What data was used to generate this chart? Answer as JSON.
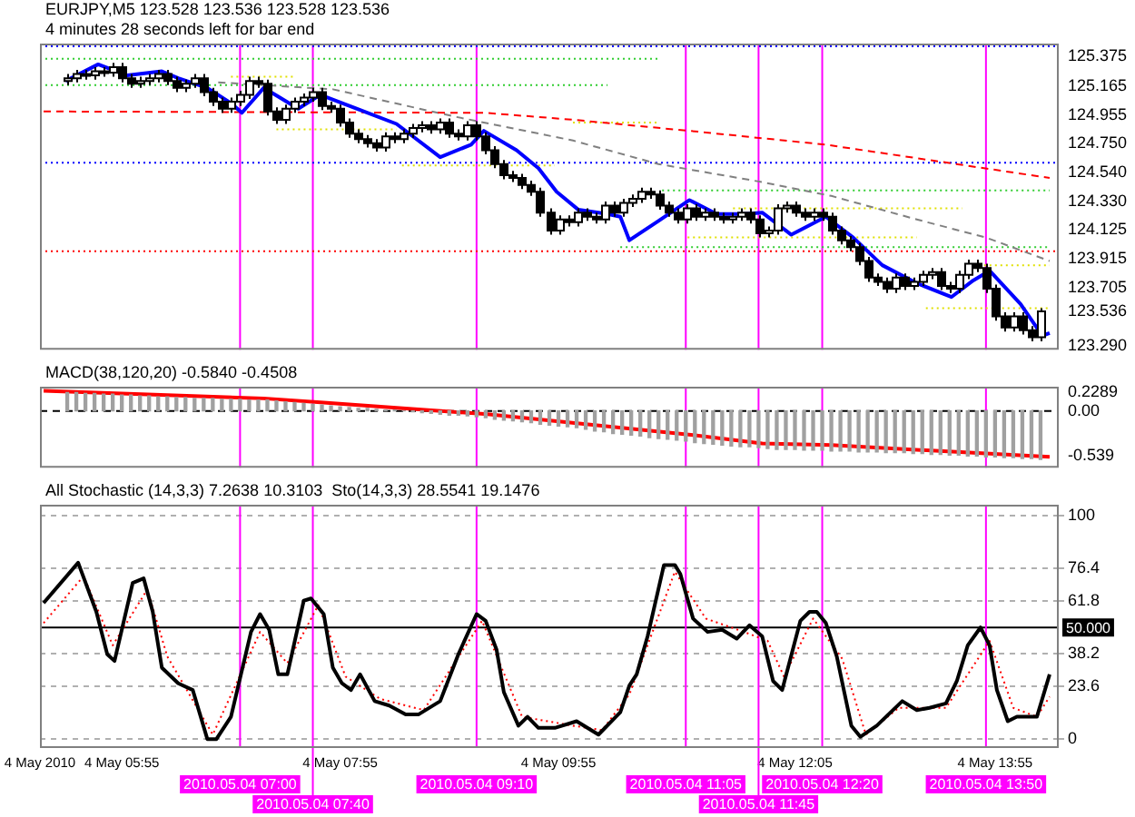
{
  "chart_data": [
    {
      "type": "candlestick",
      "title": "EURJPY,M5 123.528 123.536 123.528 123.536",
      "annotations": [
        "4 minutes 28 seconds left for bar end"
      ],
      "x": [
        "2010-05-04T05:25",
        "2010-05-04T05:30",
        "2010-05-04T05:35",
        "2010-05-04T05:40",
        "2010-05-04T05:45",
        "2010-05-04T05:50",
        "2010-05-04T05:55",
        "2010-05-04T06:00",
        "2010-05-04T06:05",
        "2010-05-04T06:10",
        "2010-05-04T06:15",
        "2010-05-04T06:20",
        "2010-05-04T06:25",
        "2010-05-04T06:30",
        "2010-05-04T06:35",
        "2010-05-04T06:40",
        "2010-05-04T06:45",
        "2010-05-04T06:50",
        "2010-05-04T06:55",
        "2010-05-04T07:00",
        "2010-05-04T07:05",
        "2010-05-04T07:10",
        "2010-05-04T07:15",
        "2010-05-04T07:20",
        "2010-05-04T07:25",
        "2010-05-04T07:30",
        "2010-05-04T07:35",
        "2010-05-04T07:40",
        "2010-05-04T07:45",
        "2010-05-04T07:50",
        "2010-05-04T07:55",
        "2010-05-04T08:00",
        "2010-05-04T08:05",
        "2010-05-04T08:10",
        "2010-05-04T08:15",
        "2010-05-04T08:20",
        "2010-05-04T08:25",
        "2010-05-04T08:30",
        "2010-05-04T08:35",
        "2010-05-04T08:40",
        "2010-05-04T08:45",
        "2010-05-04T08:50",
        "2010-05-04T08:55",
        "2010-05-04T09:00",
        "2010-05-04T09:05",
        "2010-05-04T09:10",
        "2010-05-04T09:15",
        "2010-05-04T09:20",
        "2010-05-04T09:25",
        "2010-05-04T09:30",
        "2010-05-04T09:35",
        "2010-05-04T09:40",
        "2010-05-04T09:45",
        "2010-05-04T09:50",
        "2010-05-04T09:55",
        "2010-05-04T10:00",
        "2010-05-04T10:05",
        "2010-05-04T10:10",
        "2010-05-04T10:15",
        "2010-05-04T10:20",
        "2010-05-04T10:25",
        "2010-05-04T10:30",
        "2010-05-04T10:35",
        "2010-05-04T10:40",
        "2010-05-04T10:45",
        "2010-05-04T10:50",
        "2010-05-04T10:55",
        "2010-05-04T11:00",
        "2010-05-04T11:05",
        "2010-05-04T11:10",
        "2010-05-04T11:15",
        "2010-05-04T11:20",
        "2010-05-04T11:25",
        "2010-05-04T11:30",
        "2010-05-04T11:35",
        "2010-05-04T11:40",
        "2010-05-04T11:45",
        "2010-05-04T11:50",
        "2010-05-04T11:55",
        "2010-05-04T12:00",
        "2010-05-04T12:05",
        "2010-05-04T12:10",
        "2010-05-04T12:15",
        "2010-05-04T12:20",
        "2010-05-04T12:25",
        "2010-05-04T12:30",
        "2010-05-04T12:35",
        "2010-05-04T12:40",
        "2010-05-04T12:45",
        "2010-05-04T12:50",
        "2010-05-04T12:55",
        "2010-05-04T13:00",
        "2010-05-04T13:05",
        "2010-05-04T13:10",
        "2010-05-04T13:15",
        "2010-05-04T13:20",
        "2010-05-04T13:25",
        "2010-05-04T13:30",
        "2010-05-04T13:35",
        "2010-05-04T13:40",
        "2010-05-04T13:45",
        "2010-05-04T13:50",
        "2010-05-04T13:55",
        "2010-05-04T14:00",
        "2010-05-04T14:05",
        "2010-05-04T14:10",
        "2010-05-04T14:15",
        "2010-05-04T14:20"
      ],
      "ohlc": [
        [
          125.2,
          125.25,
          125.17,
          125.22
        ],
        [
          125.22,
          125.28,
          125.19,
          125.25
        ],
        [
          125.25,
          125.28,
          125.21,
          125.24
        ],
        [
          125.24,
          125.3,
          125.21,
          125.27
        ],
        [
          125.27,
          125.3,
          125.23,
          125.26
        ],
        [
          125.26,
          125.33,
          125.23,
          125.3
        ],
        [
          125.3,
          125.33,
          125.19,
          125.22
        ],
        [
          125.22,
          125.25,
          125.15,
          125.18
        ],
        [
          125.18,
          125.23,
          125.15,
          125.2
        ],
        [
          125.2,
          125.25,
          125.17,
          125.22
        ],
        [
          125.22,
          125.28,
          125.19,
          125.25
        ],
        [
          125.25,
          125.28,
          125.17,
          125.2
        ],
        [
          125.2,
          125.23,
          125.12,
          125.15
        ],
        [
          125.15,
          125.21,
          125.12,
          125.18
        ],
        [
          125.18,
          125.25,
          125.15,
          125.22
        ],
        [
          125.22,
          125.25,
          125.09,
          125.12
        ],
        [
          125.12,
          125.15,
          125.02,
          125.05
        ],
        [
          125.05,
          125.08,
          124.97,
          125.0
        ],
        [
          125.0,
          125.08,
          124.97,
          125.05
        ],
        [
          125.05,
          125.13,
          125.02,
          125.1
        ],
        [
          125.1,
          125.23,
          125.07,
          125.2
        ],
        [
          125.2,
          125.23,
          125.15,
          125.18
        ],
        [
          125.18,
          125.21,
          124.95,
          124.98
        ],
        [
          124.98,
          125.01,
          124.89,
          124.92
        ],
        [
          124.92,
          125.03,
          124.89,
          125.0
        ],
        [
          125.0,
          125.08,
          124.97,
          125.05
        ],
        [
          125.05,
          125.11,
          125.02,
          125.08
        ],
        [
          125.08,
          125.15,
          125.05,
          125.12
        ],
        [
          125.12,
          125.15,
          124.99,
          125.02
        ],
        [
          125.02,
          125.05,
          124.97,
          125.0
        ],
        [
          125.0,
          125.03,
          124.87,
          124.9
        ],
        [
          124.9,
          124.93,
          124.79,
          124.82
        ],
        [
          124.82,
          124.85,
          124.75,
          124.78
        ],
        [
          124.78,
          124.81,
          124.72,
          124.75
        ],
        [
          124.75,
          124.78,
          124.69,
          124.72
        ],
        [
          124.72,
          124.83,
          124.69,
          124.8
        ],
        [
          124.8,
          124.83,
          124.75,
          124.78
        ],
        [
          124.78,
          124.85,
          124.75,
          124.82
        ],
        [
          124.82,
          124.89,
          124.79,
          124.86
        ],
        [
          124.86,
          124.91,
          124.83,
          124.88
        ],
        [
          124.88,
          124.91,
          124.82,
          124.85
        ],
        [
          124.85,
          124.93,
          124.82,
          124.9
        ],
        [
          124.9,
          124.93,
          124.79,
          124.82
        ],
        [
          124.82,
          124.85,
          124.77,
          124.8
        ],
        [
          124.8,
          124.91,
          124.77,
          124.88
        ],
        [
          124.88,
          124.91,
          124.77,
          124.8
        ],
        [
          124.8,
          124.83,
          124.67,
          124.7
        ],
        [
          124.7,
          124.73,
          124.57,
          124.6
        ],
        [
          124.6,
          124.63,
          124.49,
          124.52
        ],
        [
          124.52,
          124.55,
          124.47,
          124.5
        ],
        [
          124.5,
          124.53,
          124.42,
          124.45
        ],
        [
          124.45,
          124.48,
          124.37,
          124.4
        ],
        [
          124.4,
          124.43,
          124.22,
          124.25
        ],
        [
          124.25,
          124.28,
          124.09,
          124.12
        ],
        [
          124.12,
          124.23,
          124.09,
          124.2
        ],
        [
          124.2,
          124.23,
          124.15,
          124.18
        ],
        [
          124.18,
          124.28,
          124.15,
          124.25
        ],
        [
          124.25,
          124.28,
          124.19,
          124.22
        ],
        [
          124.22,
          124.25,
          124.17,
          124.2
        ],
        [
          124.2,
          124.33,
          124.17,
          124.3
        ],
        [
          124.3,
          124.33,
          124.22,
          124.25
        ],
        [
          124.25,
          124.35,
          124.22,
          124.32
        ],
        [
          124.32,
          124.38,
          124.29,
          124.35
        ],
        [
          124.35,
          124.43,
          124.32,
          124.4
        ],
        [
          124.4,
          124.43,
          124.35,
          124.38
        ],
        [
          124.38,
          124.41,
          124.27,
          124.3
        ],
        [
          124.3,
          124.33,
          124.22,
          124.25
        ],
        [
          124.25,
          124.28,
          124.17,
          124.2
        ],
        [
          124.2,
          124.31,
          124.17,
          124.28
        ],
        [
          124.28,
          124.31,
          124.19,
          124.22
        ],
        [
          124.22,
          124.28,
          124.19,
          124.25
        ],
        [
          124.25,
          124.28,
          124.19,
          124.22
        ],
        [
          124.22,
          124.25,
          124.17,
          124.2
        ],
        [
          124.2,
          124.25,
          124.17,
          124.22
        ],
        [
          124.22,
          124.28,
          124.19,
          124.25
        ],
        [
          124.25,
          124.28,
          124.17,
          124.2
        ],
        [
          124.2,
          124.23,
          124.07,
          124.1
        ],
        [
          124.1,
          124.15,
          124.07,
          124.12
        ],
        [
          124.12,
          124.31,
          124.09,
          124.28
        ],
        [
          124.28,
          124.33,
          124.25,
          124.3
        ],
        [
          124.3,
          124.33,
          124.22,
          124.25
        ],
        [
          124.25,
          124.28,
          124.19,
          124.22
        ],
        [
          124.22,
          124.28,
          124.19,
          124.25
        ],
        [
          124.25,
          124.28,
          124.19,
          124.22
        ],
        [
          124.22,
          124.25,
          124.09,
          124.12
        ],
        [
          124.12,
          124.15,
          124.02,
          124.05
        ],
        [
          124.05,
          124.08,
          123.97,
          124.0
        ],
        [
          124.0,
          124.03,
          123.87,
          123.9
        ],
        [
          123.9,
          123.93,
          123.75,
          123.78
        ],
        [
          123.78,
          123.81,
          123.72,
          123.75
        ],
        [
          123.75,
          123.78,
          123.67,
          123.7
        ],
        [
          123.7,
          123.81,
          123.67,
          123.78
        ],
        [
          123.78,
          123.81,
          123.69,
          123.72
        ],
        [
          123.72,
          123.78,
          123.69,
          123.75
        ],
        [
          123.75,
          123.83,
          123.72,
          123.8
        ],
        [
          123.8,
          123.85,
          123.77,
          123.82
        ],
        [
          123.82,
          123.85,
          123.69,
          123.72
        ],
        [
          123.72,
          123.75,
          123.67,
          123.7
        ],
        [
          123.7,
          123.83,
          123.67,
          123.8
        ],
        [
          123.8,
          123.91,
          123.77,
          123.88
        ],
        [
          123.88,
          123.91,
          123.82,
          123.85
        ],
        [
          123.85,
          123.88,
          123.67,
          123.7
        ],
        [
          123.7,
          123.73,
          123.47,
          123.5
        ],
        [
          123.5,
          123.53,
          123.39,
          123.42
        ],
        [
          123.42,
          123.53,
          123.39,
          123.5
        ],
        [
          123.5,
          123.53,
          123.37,
          123.4
        ],
        [
          123.4,
          123.43,
          123.32,
          123.35
        ],
        [
          123.35,
          123.56,
          123.32,
          123.536
        ]
      ],
      "series": [
        {
          "type": "line",
          "color": "#0000ff",
          "x": [
            "2010-05-04T05:24",
            "2010-05-04T05:42",
            "2010-05-04T05:58",
            "2010-05-04T06:17",
            "2010-05-04T06:26",
            "2010-05-04T06:42",
            "2010-05-04T06:55",
            "2010-05-04T07:01",
            "2010-05-04T07:13",
            "2010-05-04T07:32",
            "2010-05-04T07:44",
            "2010-05-04T08:04",
            "2010-05-04T08:26",
            "2010-05-04T08:50",
            "2010-05-04T09:07",
            "2010-05-04T09:14",
            "2010-05-04T09:32",
            "2010-05-04T09:44",
            "2010-05-04T09:54",
            "2010-05-04T10:06",
            "2010-05-04T10:22",
            "2010-05-04T10:29",
            "2010-05-04T10:34",
            "2010-05-04T10:50",
            "2010-05-04T11:07",
            "2010-05-04T11:22",
            "2010-05-04T11:37",
            "2010-05-04T11:47",
            "2010-05-04T12:03",
            "2010-05-04T12:22",
            "2010-05-04T12:37",
            "2010-05-04T12:53",
            "2010-05-04T13:12",
            "2010-05-04T13:31",
            "2010-05-04T13:43",
            "2010-05-04T13:52",
            "2010-05-04T14:09",
            "2010-05-04T14:21",
            "2010-05-04T14:25"
          ],
          "values": [
            125.2,
            125.32,
            125.24,
            125.27,
            125.22,
            125.15,
            125.04,
            124.97,
            125.15,
            125.0,
            125.1,
            125.0,
            124.89,
            124.65,
            124.74,
            124.84,
            124.7,
            124.57,
            124.4,
            124.27,
            124.24,
            124.22,
            124.05,
            124.19,
            124.34,
            124.24,
            124.24,
            124.25,
            124.09,
            124.22,
            124.07,
            123.87,
            123.74,
            123.64,
            123.76,
            123.83,
            123.59,
            123.36,
            123.38
          ]
        },
        {
          "type": "line",
          "color": "#ff0000",
          "line_style": "dashed",
          "x": [
            "2010-05-04T05:12",
            "2010-05-04T09:15",
            "2010-05-04T10:03",
            "2010-05-04T11:07",
            "2010-05-04T12:22",
            "2010-05-04T14:25"
          ],
          "values": [
            124.98,
            124.97,
            124.92,
            124.84,
            124.74,
            124.5
          ]
        },
        {
          "type": "line",
          "color": "#808080",
          "line_style": "dashed",
          "x": [
            "2010-05-04T06:48",
            "2010-05-04T07:51",
            "2010-05-04T08:59",
            "2010-05-04T10:03",
            "2010-05-04T10:50",
            "2010-05-04T11:47",
            "2010-05-04T12:25",
            "2010-05-04T13:12",
            "2010-05-04T13:50",
            "2010-05-04T14:25"
          ],
          "values": [
            125.19,
            125.14,
            124.94,
            124.77,
            124.6,
            124.47,
            124.37,
            124.2,
            124.07,
            123.9
          ]
        },
        {
          "type": "line",
          "color": "#0000ff",
          "line_style": "dotted",
          "x": [
            "2010-05-04T05:10",
            "2010-05-04T14:30"
          ],
          "values": [
            125.45,
            125.45
          ]
        },
        {
          "type": "line",
          "color": "#32cd32",
          "line_style": "dotted",
          "x": [
            "2010-05-04T05:10",
            "2010-05-04T10:50"
          ],
          "values": [
            125.36,
            125.36
          ]
        },
        {
          "type": "line",
          "color": "#32cd32",
          "line_style": "dotted",
          "x": [
            "2010-05-04T05:10",
            "2010-05-04T10:22"
          ],
          "values": [
            125.17,
            125.17
          ]
        },
        {
          "type": "line",
          "color": "#0000ff",
          "line_style": "dotted",
          "x": [
            "2010-05-04T05:10",
            "2010-05-04T14:30"
          ],
          "values": [
            124.61,
            124.61
          ]
        },
        {
          "type": "line",
          "color": "#32cd32",
          "line_style": "dotted",
          "x": [
            "2010-05-04T10:52",
            "2010-05-04T14:25"
          ],
          "values": [
            124.41,
            124.41
          ]
        },
        {
          "type": "line",
          "color": "#e0e000",
          "line_style": "dotted",
          "x": [
            "2010-05-04T11:31",
            "2010-05-04T13:37"
          ],
          "values": [
            124.28,
            124.28
          ]
        },
        {
          "type": "line",
          "color": "#e0e000",
          "line_style": "dotted",
          "x": [
            "2010-05-04T11:06",
            "2010-05-04T13:12"
          ],
          "values": [
            124.07,
            124.07
          ]
        },
        {
          "type": "line",
          "color": "#32cd32",
          "line_style": "dotted",
          "x": [
            "2010-05-04T10:29",
            "2010-05-04T14:25"
          ],
          "values": [
            124.0,
            124.0
          ]
        },
        {
          "type": "line",
          "color": "#ff0000",
          "line_style": "dotted",
          "x": [
            "2010-05-04T05:10",
            "2010-05-04T14:30"
          ],
          "values": [
            123.97,
            123.97
          ]
        },
        {
          "type": "line",
          "color": "#e0e000",
          "line_style": "dotted",
          "x": [
            "2010-05-04T13:40",
            "2010-05-04T14:25"
          ],
          "values": [
            123.87,
            123.87
          ]
        },
        {
          "type": "line",
          "color": "#e0e000",
          "line_style": "dotted",
          "x": [
            "2010-05-04T13:17",
            "2010-05-04T14:25"
          ],
          "values": [
            123.56,
            123.56
          ]
        },
        {
          "type": "line",
          "color": "#e0e000",
          "line_style": "dotted",
          "x": [
            "2010-05-04T08:29",
            "2010-05-04T09:53"
          ],
          "values": [
            124.59,
            124.59
          ]
        },
        {
          "type": "line",
          "color": "#e0e000",
          "line_style": "dotted",
          "x": [
            "2010-05-04T07:20",
            "2010-05-04T08:26"
          ],
          "values": [
            124.85,
            124.85
          ]
        },
        {
          "type": "line",
          "color": "#e0e000",
          "line_style": "dotted",
          "x": [
            "2010-05-04T06:55",
            "2010-05-04T07:29"
          ],
          "values": [
            125.23,
            125.23
          ]
        },
        {
          "type": "line",
          "color": "#e0e000",
          "line_style": "dotted",
          "x": [
            "2010-05-04T10:03",
            "2010-05-04T10:49"
          ],
          "values": [
            124.9,
            124.9
          ]
        }
      ],
      "xlim": [
        "2010-05-04T05:10",
        "2010-05-04T14:30"
      ],
      "ylim": [
        123.26,
        125.47
      ],
      "yticks": [
        125.375,
        125.165,
        124.955,
        {
          "value": 124.75,
          "label": "124.750"
        },
        {
          "value": 124.54,
          "label": "124.540"
        },
        {
          "value": 124.33,
          "label": "124.330"
        },
        124.125,
        123.915,
        123.705,
        123.536,
        {
          "value": 123.29,
          "label": "123.290"
        }
      ],
      "tick_labels": "y",
      "ref_lines": [
        {
          "axis": "x",
          "value": "2010-05-04T07:00",
          "color": "#ff00ff"
        },
        {
          "axis": "x",
          "value": "2010-05-04T07:40",
          "color": "#ff00ff"
        },
        {
          "axis": "x",
          "value": "2010-05-04T09:10",
          "color": "#ff00ff"
        },
        {
          "axis": "x",
          "value": "2010-05-04T11:05",
          "color": "#ff00ff"
        },
        {
          "axis": "x",
          "value": "2010-05-04T11:45",
          "color": "#ff00ff"
        },
        {
          "axis": "x",
          "value": "2010-05-04T12:20",
          "color": "#ff00ff"
        },
        {
          "axis": "x",
          "value": "2010-05-04T13:50",
          "color": "#ff00ff"
        }
      ]
    },
    {
      "type": "bar",
      "title": "MACD(38,120,20) -0.5840 -0.4508",
      "x": [
        "2010-05-04T05:25",
        "2010-05-04T05:30",
        "2010-05-04T05:35",
        "2010-05-04T05:40",
        "2010-05-04T05:45",
        "2010-05-04T05:50",
        "2010-05-04T05:55",
        "2010-05-04T06:00",
        "2010-05-04T06:05",
        "2010-05-04T06:10",
        "2010-05-04T06:15",
        "2010-05-04T06:20",
        "2010-05-04T06:25",
        "2010-05-04T06:30",
        "2010-05-04T06:35",
        "2010-05-04T06:40",
        "2010-05-04T06:45",
        "2010-05-04T06:50",
        "2010-05-04T06:55",
        "2010-05-04T07:00",
        "2010-05-04T07:05",
        "2010-05-04T07:10",
        "2010-05-04T07:15",
        "2010-05-04T07:20",
        "2010-05-04T07:25",
        "2010-05-04T07:30",
        "2010-05-04T07:35",
        "2010-05-04T07:40",
        "2010-05-04T07:45",
        "2010-05-04T07:50",
        "2010-05-04T07:55",
        "2010-05-04T08:00",
        "2010-05-04T08:05",
        "2010-05-04T08:10",
        "2010-05-04T08:15",
        "2010-05-04T08:20",
        "2010-05-04T08:25",
        "2010-05-04T08:30",
        "2010-05-04T08:35",
        "2010-05-04T08:40",
        "2010-05-04T08:45",
        "2010-05-04T08:50",
        "2010-05-04T08:55",
        "2010-05-04T09:00",
        "2010-05-04T09:05",
        "2010-05-04T09:10",
        "2010-05-04T09:15",
        "2010-05-04T09:20",
        "2010-05-04T09:25",
        "2010-05-04T09:30",
        "2010-05-04T09:35",
        "2010-05-04T09:40",
        "2010-05-04T09:45",
        "2010-05-04T09:50",
        "2010-05-04T09:55",
        "2010-05-04T10:00",
        "2010-05-04T10:05",
        "2010-05-04T10:10",
        "2010-05-04T10:15",
        "2010-05-04T10:20",
        "2010-05-04T10:25",
        "2010-05-04T10:30",
        "2010-05-04T10:35",
        "2010-05-04T10:40",
        "2010-05-04T10:45",
        "2010-05-04T10:50",
        "2010-05-04T10:55",
        "2010-05-04T11:00",
        "2010-05-04T11:05",
        "2010-05-04T11:10",
        "2010-05-04T11:15",
        "2010-05-04T11:20",
        "2010-05-04T11:25",
        "2010-05-04T11:30",
        "2010-05-04T11:35",
        "2010-05-04T11:40",
        "2010-05-04T11:45",
        "2010-05-04T11:50",
        "2010-05-04T11:55",
        "2010-05-04T12:00",
        "2010-05-04T12:05",
        "2010-05-04T12:10",
        "2010-05-04T12:15",
        "2010-05-04T12:20",
        "2010-05-04T12:25",
        "2010-05-04T12:30",
        "2010-05-04T12:35",
        "2010-05-04T12:40",
        "2010-05-04T12:45",
        "2010-05-04T12:50",
        "2010-05-04T12:55",
        "2010-05-04T13:00",
        "2010-05-04T13:05",
        "2010-05-04T13:10",
        "2010-05-04T13:15",
        "2010-05-04T13:20",
        "2010-05-04T13:25",
        "2010-05-04T13:30",
        "2010-05-04T13:35",
        "2010-05-04T13:40",
        "2010-05-04T13:45",
        "2010-05-04T13:50",
        "2010-05-04T13:55",
        "2010-05-04T14:00",
        "2010-05-04T14:05",
        "2010-05-04T14:10",
        "2010-05-04T14:15",
        "2010-05-04T14:20"
      ],
      "series": [
        {
          "type": "bar",
          "color": "#a0a0a0",
          "values": [
            0.22,
            0.22,
            0.21,
            0.21,
            0.2,
            0.2,
            0.19,
            0.19,
            0.18,
            0.18,
            0.17,
            0.17,
            0.16,
            0.16,
            0.15,
            0.15,
            0.15,
            0.14,
            0.14,
            0.14,
            0.13,
            0.13,
            0.13,
            0.12,
            0.11,
            0.1,
            0.09,
            0.08,
            0.07,
            0.06,
            0.05,
            0.04,
            0.03,
            0.03,
            0.02,
            0.01,
            0.01,
            0.0,
            -0.01,
            -0.02,
            -0.03,
            -0.04,
            -0.05,
            -0.05,
            -0.06,
            -0.07,
            -0.08,
            -0.1,
            -0.11,
            -0.12,
            -0.13,
            -0.14,
            -0.16,
            -0.17,
            -0.18,
            -0.19,
            -0.2,
            -0.22,
            -0.24,
            -0.25,
            -0.27,
            -0.28,
            -0.29,
            -0.3,
            -0.32,
            -0.33,
            -0.34,
            -0.35,
            -0.36,
            -0.38,
            -0.39,
            -0.4,
            -0.41,
            -0.42,
            -0.43,
            -0.43,
            -0.44,
            -0.45,
            -0.46,
            -0.46,
            -0.46,
            -0.47,
            -0.47,
            -0.47,
            -0.48,
            -0.48,
            -0.48,
            -0.49,
            -0.49,
            -0.49,
            -0.5,
            -0.5,
            -0.5,
            -0.51,
            -0.51,
            -0.52,
            -0.52,
            -0.53,
            -0.53,
            -0.54,
            -0.54,
            -0.55,
            -0.55,
            -0.56,
            -0.56,
            -0.57,
            -0.57,
            -0.58
          ]
        },
        {
          "type": "line",
          "color": "#ff0000",
          "x": [
            "2010-05-04T05:12",
            "2010-05-04T07:13",
            "2010-05-04T07:46",
            "2010-05-04T09:16",
            "2010-05-04T11:09",
            "2010-05-04T11:47",
            "2010-05-04T12:25",
            "2010-05-04T13:50",
            "2010-05-04T14:25"
          ],
          "values": [
            0.24,
            0.15,
            0.1,
            -0.04,
            -0.29,
            -0.39,
            -0.41,
            -0.51,
            -0.55
          ]
        }
      ],
      "xlim": [
        "2010-05-04T05:10",
        "2010-05-04T14:30"
      ],
      "ylim": [
        -0.68,
        0.29
      ],
      "yticks": [
        0.2289,
        {
          "value": 0,
          "label": "0.00"
        },
        -0.539
      ],
      "tick_labels": "y",
      "ref_lines": [
        {
          "axis": "y",
          "value": 0,
          "color": "#000000",
          "line_style": "dashed"
        },
        {
          "axis": "x",
          "value": "2010-05-04T07:00",
          "color": "#ff00ff"
        },
        {
          "axis": "x",
          "value": "2010-05-04T07:40",
          "color": "#ff00ff"
        },
        {
          "axis": "x",
          "value": "2010-05-04T09:10",
          "color": "#ff00ff"
        },
        {
          "axis": "x",
          "value": "2010-05-04T11:05",
          "color": "#ff00ff"
        },
        {
          "axis": "x",
          "value": "2010-05-04T11:45",
          "color": "#ff00ff"
        },
        {
          "axis": "x",
          "value": "2010-05-04T12:20",
          "color": "#ff00ff"
        },
        {
          "axis": "x",
          "value": "2010-05-04T13:50",
          "color": "#ff00ff"
        }
      ]
    },
    {
      "type": "line",
      "title": "All Stochastic (14,3,3) 7.2638 10.3103  Sto(14,3,3) 28.5541 19.1476",
      "series": [
        {
          "color": "#000000",
          "x": [
            "2010-05-04T05:12",
            "2010-05-04T05:31",
            "2010-05-04T05:41",
            "2010-05-04T05:47",
            "2010-05-04T05:51",
            "2010-05-04T06:01",
            "2010-05-04T06:07",
            "2010-05-04T06:12",
            "2010-05-04T06:17",
            "2010-05-04T06:26",
            "2010-05-04T06:34",
            "2010-05-04T06:42",
            "2010-05-04T06:47",
            "2010-05-04T06:55",
            "2010-05-04T07:06",
            "2010-05-04T07:11",
            "2010-05-04T07:16",
            "2010-05-04T07:21",
            "2010-05-04T07:26",
            "2010-05-04T07:35",
            "2010-05-04T07:39",
            "2010-05-04T07:46",
            "2010-05-04T07:51",
            "2010-05-04T07:56",
            "2010-05-04T08:01",
            "2010-05-04T08:06",
            "2010-05-04T08:14",
            "2010-05-04T08:22",
            "2010-05-04T08:31",
            "2010-05-04T08:38",
            "2010-05-04T08:50",
            "2010-05-04T09:00",
            "2010-05-04T09:10",
            "2010-05-04T09:15",
            "2010-05-04T09:21",
            "2010-05-04T09:25",
            "2010-05-04T09:33",
            "2010-05-04T09:38",
            "2010-05-04T09:44",
            "2010-05-04T09:53",
            "2010-05-04T10:05",
            "2010-05-04T10:17",
            "2010-05-04T10:29",
            "2010-05-04T10:34",
            "2010-05-04T10:38",
            "2010-05-04T10:44",
            "2010-05-04T10:53",
            "2010-05-04T10:59",
            "2010-05-04T11:02",
            "2010-05-04T11:09",
            "2010-05-04T11:17",
            "2010-05-04T11:25",
            "2010-05-04T11:33",
            "2010-05-04T11:40",
            "2010-05-04T11:47",
            "2010-05-04T11:53",
            "2010-05-04T11:58",
            "2010-05-04T12:08",
            "2010-05-04T12:13",
            "2010-05-04T12:17",
            "2010-05-04T12:22",
            "2010-05-04T12:28",
            "2010-05-04T12:36",
            "2010-05-04T12:41",
            "2010-05-04T12:50",
            "2010-05-04T13:04",
            "2010-05-04T13:12",
            "2010-05-04T13:19",
            "2010-05-04T13:28",
            "2010-05-04T13:34",
            "2010-05-04T13:40",
            "2010-05-04T13:47",
            "2010-05-04T13:52",
            "2010-05-04T13:56",
            "2010-05-04T14:02",
            "2010-05-04T14:07",
            "2010-05-04T14:18",
            "2010-05-04T14:25"
          ],
          "values": [
            61,
            79,
            57,
            38,
            35,
            70,
            72,
            57,
            32,
            25,
            22,
            0,
            0,
            10,
            48,
            56,
            49,
            29,
            29,
            62,
            63,
            56,
            32,
            25,
            22,
            29,
            17,
            15,
            11,
            11,
            17,
            38,
            56,
            53,
            40,
            21,
            6,
            10,
            5,
            5,
            8,
            2,
            12,
            24,
            29,
            46,
            78,
            78,
            74,
            54,
            48,
            49,
            45,
            51,
            46,
            26,
            22,
            53,
            57,
            57,
            52,
            37,
            6,
            1,
            6,
            17,
            13,
            14,
            16,
            26,
            42,
            50,
            42,
            22,
            8,
            10,
            10,
            29
          ]
        },
        {
          "color": "#ff0000",
          "line_style": "dotted",
          "x": [
            "2010-05-04T05:12",
            "2010-05-04T05:34",
            "2010-05-04T05:50",
            "2010-05-04T06:09",
            "2010-05-04T06:20",
            "2010-05-04T06:45",
            "2010-05-04T07:11",
            "2010-05-04T07:26",
            "2010-05-04T07:43",
            "2010-05-04T07:58",
            "2010-05-04T08:17",
            "2010-05-04T08:41",
            "2010-05-04T09:13",
            "2010-05-04T09:35",
            "2010-05-04T10:03",
            "2010-05-04T10:19",
            "2010-05-04T10:34",
            "2010-05-04T10:59",
            "2010-05-04T11:16",
            "2010-05-04T11:37",
            "2010-05-04T11:50",
            "2010-05-04T11:59",
            "2010-05-04T12:15",
            "2010-05-04T12:31",
            "2010-05-04T12:44",
            "2010-05-04T13:02",
            "2010-05-04T13:28",
            "2010-05-04T13:52",
            "2010-05-04T14:05",
            "2010-05-04T14:18",
            "2010-05-04T14:25"
          ],
          "values": [
            52,
            73,
            42,
            67,
            37,
            2,
            48,
            34,
            60,
            28,
            18,
            13,
            53,
            10,
            6,
            4,
            20,
            75,
            54,
            48,
            44,
            28,
            54,
            36,
            2,
            14,
            14,
            44,
            14,
            10,
            19
          ]
        }
      ],
      "xlim": [
        "2010-05-04T05:10",
        "2010-05-04T14:30"
      ],
      "ylim": [
        -4,
        105
      ],
      "xticks": [
        {
          "value": "2010-05-04T05:10",
          "label": "4 May 2010"
        },
        {
          "value": "2010-05-04T05:55",
          "label": "4 May 05:55"
        },
        {
          "value": "2010-05-04T07:55",
          "label": "4 May 07:55"
        },
        {
          "value": "2010-05-04T09:55",
          "label": "4 May 09:55"
        },
        {
          "value": "2010-05-04T12:05",
          "label": "4 May 12:05"
        },
        {
          "value": "2010-05-04T13:55",
          "label": "4 May 13:55"
        }
      ],
      "yticks": [
        100,
        76.4,
        61.8,
        38.2,
        23.6,
        0
      ],
      "grid": "y",
      "ref_lines": [
        {
          "axis": "y",
          "value": 50,
          "label": "50.000",
          "color": "#000000"
        },
        {
          "axis": "x",
          "value": "2010-05-04T07:00",
          "label": "2010.05.04 07:00",
          "color": "#ff00ff"
        },
        {
          "axis": "x",
          "value": "2010-05-04T07:40",
          "label": "2010.05.04 07:40",
          "color": "#ff00ff"
        },
        {
          "axis": "x",
          "value": "2010-05-04T09:10",
          "label": "2010.05.04 09:10",
          "color": "#ff00ff"
        },
        {
          "axis": "x",
          "value": "2010-05-04T11:05",
          "label": "2010.05.04 11:05",
          "color": "#ff00ff"
        },
        {
          "axis": "x",
          "value": "2010-05-04T11:45",
          "label": "2010.05.04 11:45",
          "color": "#ff00ff"
        },
        {
          "axis": "x",
          "value": "2010-05-04T12:20",
          "label": "2010.05.04 12:20",
          "color": "#ff00ff"
        },
        {
          "axis": "x",
          "value": "2010-05-04T13:50",
          "label": "2010.05.04 13:50",
          "color": "#ff00ff"
        }
      ]
    }
  ]
}
